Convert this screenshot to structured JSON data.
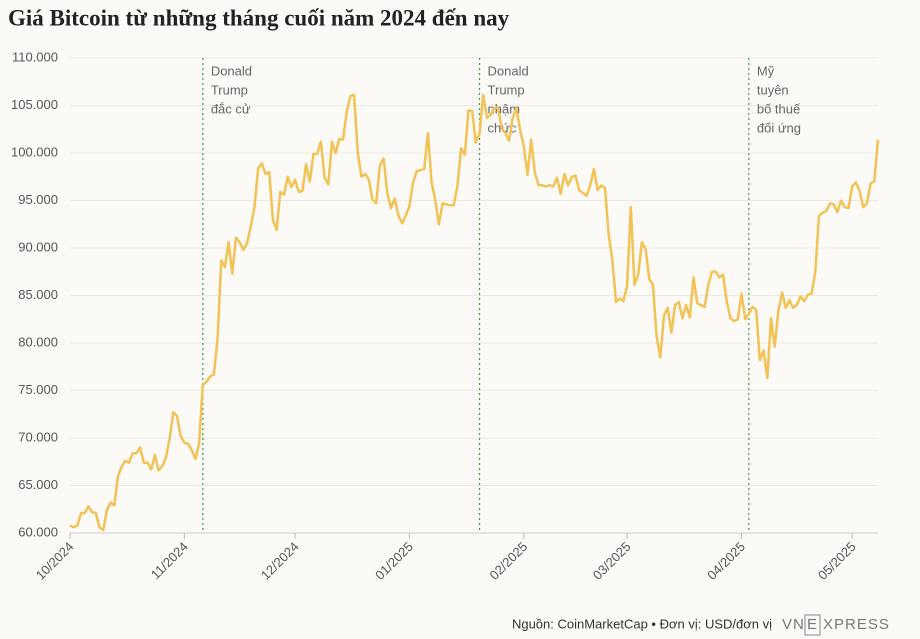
{
  "chart_data": {
    "type": "line",
    "title": "Giá Bitcoin từ những tháng cuối năm 2024 đến nay",
    "color": "#f2c255",
    "grid": true,
    "values": [
      60800,
      60600,
      60800,
      62100,
      62100,
      62800,
      62200,
      62100,
      60600,
      60300,
      62400,
      63200,
      62900,
      66000,
      67000,
      67600,
      67400,
      68400,
      68400,
      69000,
      67400,
      67400,
      66700,
      68200,
      66600,
      67000,
      67900,
      69900,
      72700,
      72300,
      70200,
      69500,
      69400,
      68700,
      67800,
      69400,
      75600,
      75900,
      76500,
      76700,
      80500,
      88700,
      88000,
      90600,
      87300,
      91100,
      90600,
      89800,
      90500,
      92300,
      94300,
      98400,
      98900,
      97800,
      98000,
      93000,
      91900,
      95900,
      95600,
      97500,
      96400,
      97200,
      95900,
      96000,
      98800,
      97000,
      99900,
      99900,
      101200,
      97400,
      96700,
      101200,
      100000,
      101500,
      101400,
      104300,
      106000,
      106100,
      100000,
      97500,
      97800,
      97200,
      95100,
      94700,
      98700,
      99400,
      95800,
      94200,
      95200,
      93400,
      92600,
      93400,
      94400,
      96900,
      98100,
      98200,
      98300,
      102100,
      96900,
      95000,
      92500,
      94700,
      94600,
      94500,
      94500,
      96500,
      100500,
      99800,
      104500,
      104400,
      101100,
      102000,
      106100,
      103700,
      104000,
      104700,
      104800,
      102600,
      102100,
      101300,
      103700,
      104700,
      102400,
      100700,
      97700,
      101400,
      97900,
      96600,
      96600,
      96500,
      96600,
      96500,
      97400,
      95700,
      97800,
      96600,
      97500,
      97600,
      96100,
      95800,
      95500,
      96600,
      98300,
      96100,
      96600,
      96300,
      91400,
      88700,
      84300,
      84700,
      84400,
      86000,
      94300,
      86100,
      87200,
      90600,
      89900,
      86700,
      86200,
      80700,
      78500,
      82900,
      83700,
      81100,
      84000,
      84300,
      82600,
      84000,
      82700,
      86900,
      84200,
      84000,
      83800,
      86100,
      87500,
      87500,
      86900,
      87200,
      84400,
      82600,
      82300,
      82500,
      85200,
      82500,
      83100,
      83800,
      83500,
      78200,
      79200,
      76300,
      82600,
      79600,
      83400,
      85300,
      83700,
      84500,
      83700,
      84000,
      84900,
      84400,
      85100,
      85200,
      87500,
      93400,
      93700,
      93900,
      94700,
      94600,
      93800,
      95000,
      94300,
      94200,
      96500,
      96900,
      96000,
      94300,
      94700,
      96800,
      97000,
      101400
    ],
    "xlim": [
      0,
      219
    ],
    "xticks": [
      {
        "value": 0,
        "label": "10/2024"
      },
      {
        "value": 31,
        "label": "11/2024"
      },
      {
        "value": 61,
        "label": "12/2024"
      },
      {
        "value": 92,
        "label": "01/2025"
      },
      {
        "value": 123,
        "label": "02/2025"
      },
      {
        "value": 151,
        "label": "03/2025"
      },
      {
        "value": 182,
        "label": "04/2025"
      },
      {
        "value": 212,
        "label": "05/2025"
      }
    ],
    "ylim": [
      60000,
      110000
    ],
    "yticks": [
      {
        "value": 60000,
        "label": "60.000"
      },
      {
        "value": 65000,
        "label": "65.000"
      },
      {
        "value": 70000,
        "label": "70.000"
      },
      {
        "value": 75000,
        "label": "75.000"
      },
      {
        "value": 80000,
        "label": "80.000"
      },
      {
        "value": 85000,
        "label": "85.000"
      },
      {
        "value": 90000,
        "label": "90.000"
      },
      {
        "value": 95000,
        "label": "95.000"
      },
      {
        "value": 100000,
        "label": "100.000"
      },
      {
        "value": 105000,
        "label": "105.000"
      },
      {
        "value": 110000,
        "label": "110.000"
      }
    ],
    "annotations": [
      {
        "x": 36,
        "lines": [
          "Donald",
          "Trump",
          "đắc cử"
        ]
      },
      {
        "x": 111,
        "lines": [
          "Donald",
          "Trump",
          "nhậm",
          "chức"
        ]
      },
      {
        "x": 184,
        "lines": [
          "Mỹ",
          "tuyên",
          "bố thuế",
          "đối ứng"
        ]
      }
    ]
  },
  "footer": {
    "source": "Nguồn: CoinMarketCap • Đơn vị: USD/đơn vị",
    "logo": [
      "VN",
      "E",
      "XPRESS"
    ]
  }
}
